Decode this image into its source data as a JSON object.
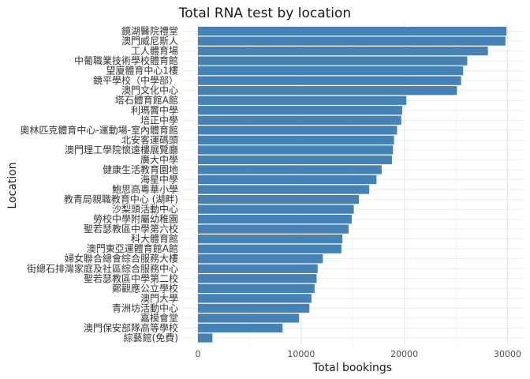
{
  "chart_data": {
    "type": "bar",
    "orientation": "horizontal",
    "title": "Total RNA test by location",
    "xlabel": "Total bookings",
    "ylabel": "Location",
    "xlim": [
      0,
      31000
    ],
    "xticks": [
      0,
      10000,
      20000,
      30000
    ],
    "grid": true,
    "bar_color": "#4682B4",
    "categories": [
      "鏡湖醫院禮堂",
      "澳門威尼斯人",
      "工人體育場",
      "中葡職業技術學校體育館",
      "望廈體育中心1樓",
      "鏡平學校（中學部）",
      "澳門文化中心",
      "塔石體育館A館",
      "利瑪竇中學",
      "培正中學",
      "奧林匹克體育中心-運動場-室內體育館",
      "北安客運碼頭",
      "澳門理工學院懷遠樓展覽廳",
      "廣大中學",
      "健康生活教育園地",
      "海星中學",
      "鮑思高粵華小學",
      "教青局親職教育中心 (湖畔)",
      "沙梨頭活動中心",
      "勞校中學附屬幼稚園",
      "聖若瑟教區中學第六校",
      "科大體育館",
      "澳門東亞運體育館A館",
      "婦女聯合總會綜合服務大樓",
      "街總石排灣家庭及社區綜合服務中心",
      "聖若瑟教區中學第二校",
      "鄭觀應公立學校",
      "澳門大學",
      "青洲坊活動中心",
      "嘉模會堂",
      "澳門保安部隊高等學校",
      "綜藝館(免費)"
    ],
    "values": [
      29900,
      29800,
      28100,
      26100,
      25700,
      25500,
      25100,
      20200,
      19800,
      19700,
      19300,
      19000,
      18900,
      18800,
      17800,
      17300,
      16600,
      15600,
      15100,
      14900,
      14600,
      14000,
      13900,
      12100,
      11600,
      11500,
      11300,
      11000,
      10800,
      9800,
      8200,
      1400
    ]
  }
}
